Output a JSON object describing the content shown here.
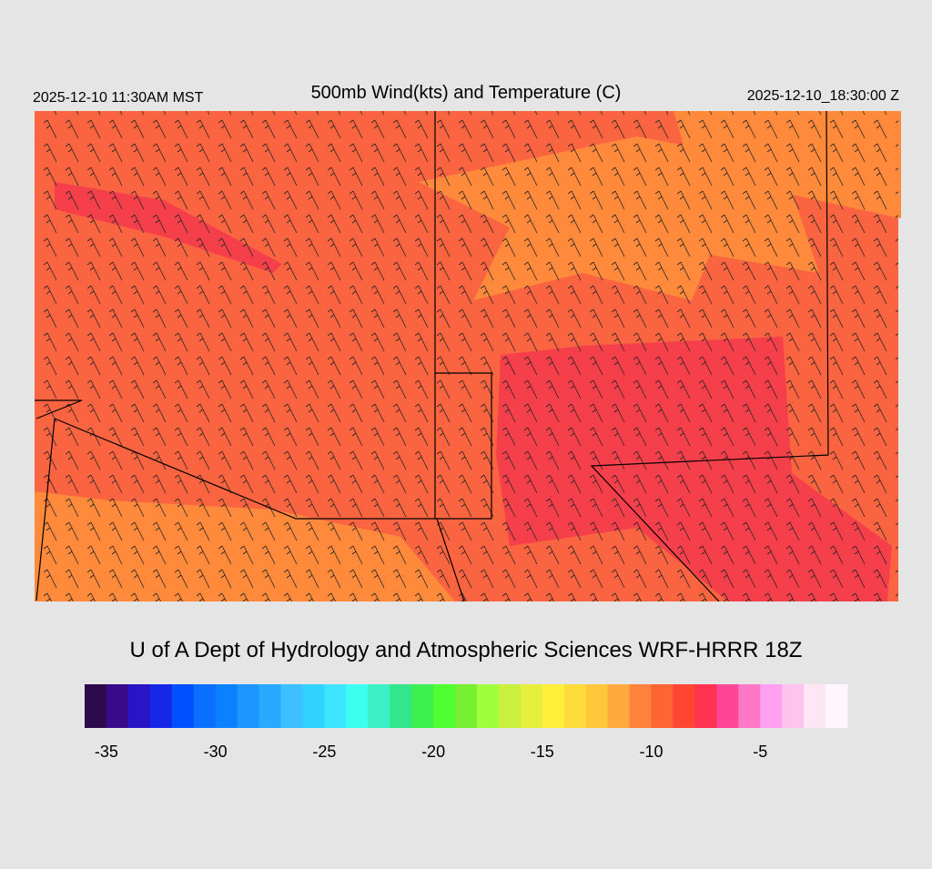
{
  "header": {
    "left": "2025-12-10 11:30AM MST",
    "title": "500mb Wind(kts) and Temperature (C)",
    "right": "2025-12-10_18:30:00 Z"
  },
  "footer": "U of A Dept of Hydrology and Atmospheric Sciences WRF-HRRR 18Z",
  "colorbar": {
    "lim": [
      -36,
      -1
    ],
    "ticks": [
      -35,
      -30,
      -25,
      -20,
      -15,
      -10,
      -5
    ],
    "colors": [
      "#2d0a4b",
      "#3a0a8c",
      "#2a14c8",
      "#1428e6",
      "#0050ff",
      "#0a6eff",
      "#0a82ff",
      "#1e96ff",
      "#28aaff",
      "#3cc0ff",
      "#32d2ff",
      "#3ce6ff",
      "#3cfff0",
      "#3cf0c8",
      "#32e68c",
      "#3cf050",
      "#50ff32",
      "#78f032",
      "#a0ff3c",
      "#c8f03c",
      "#e6f03c",
      "#fff03c",
      "#ffdc3c",
      "#ffc83c",
      "#ffaa3c",
      "#ff823c",
      "#ff6432",
      "#ff4632",
      "#ff3250",
      "#ff4696",
      "#ff78c8",
      "#ffa0f0",
      "#ffc3f0",
      "#ffe6f5",
      "#fff5fc"
    ]
  }
}
